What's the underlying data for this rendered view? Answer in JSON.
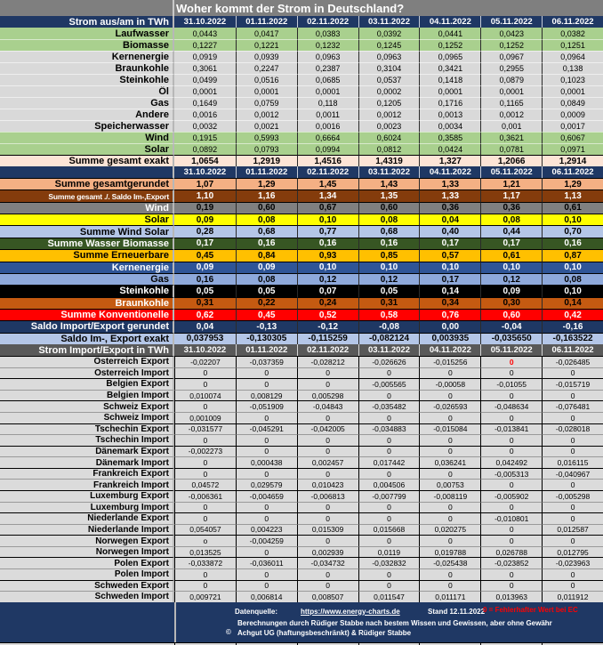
{
  "title": "Woher kommt der Strom in Deutschland?",
  "dates": [
    "31.10.2022",
    "01.11.2022",
    "02.11.2022",
    "03.11.2022",
    "04.11.2022",
    "05.11.2022",
    "06.11.2022"
  ],
  "colors": {
    "header_navy": "#1F3864",
    "header_gray": "#595959",
    "title_gray": "#7F7F7F",
    "renewable_green": "#A9D08E",
    "conventional_gray": "#D9D9D9",
    "sum_peach": "#FCE4D6",
    "rounded_salmon": "#F4B084",
    "saldo_brown": "#843C0C",
    "wind_gray": "#808080",
    "solar_yellow": "#FFFF00",
    "windsolar_blue": "#B4C6E7",
    "waterbio_green": "#375623",
    "renewables_orange": "#FFC000",
    "nuclear_blue": "#2F5597",
    "gas_blue": "#8EA9DB",
    "hardcoal_black": "#000000",
    "lignite_rust": "#C55A11",
    "conventional_red": "#FF0000",
    "error_red": "#FF0000",
    "country_gray": "#DBDBDB"
  },
  "section1": {
    "header_label": "Strom aus/am in TWh",
    "rows": [
      {
        "label": "Laufwasser",
        "style": "green",
        "values": [
          "0,0443",
          "0,0417",
          "0,0383",
          "0,0392",
          "0,0441",
          "0,0423",
          "0,0382"
        ]
      },
      {
        "label": "Biomasse",
        "style": "green",
        "values": [
          "0,1227",
          "0,1221",
          "0,1232",
          "0,1245",
          "0,1252",
          "0,1252",
          "0,1251"
        ]
      },
      {
        "label": "Kernenergie",
        "style": "gray",
        "values": [
          "0,0919",
          "0,0939",
          "0,0963",
          "0,0963",
          "0,0965",
          "0,0967",
          "0,0964"
        ]
      },
      {
        "label": "Braunkohle",
        "style": "gray",
        "values": [
          "0,3061",
          "0,2247",
          "0,2387",
          "0,3104",
          "0,3421",
          "0,2955",
          "0,138"
        ]
      },
      {
        "label": "Steinkohle",
        "style": "gray",
        "values": [
          "0,0499",
          "0,0516",
          "0,0685",
          "0,0537",
          "0,1418",
          "0,0879",
          "0,1023"
        ]
      },
      {
        "label": "Öl",
        "style": "gray",
        "values": [
          "0,0001",
          "0,0001",
          "0,0001",
          "0,0002",
          "0,0001",
          "0,0001",
          "0,0001"
        ]
      },
      {
        "label": "Gas",
        "style": "gray",
        "values": [
          "0,1649",
          "0,0759",
          "0,118",
          "0,1205",
          "0,1716",
          "0,1165",
          "0,0849"
        ]
      },
      {
        "label": "Andere",
        "style": "gray",
        "values": [
          "0,0016",
          "0,0012",
          "0,0011",
          "0,0012",
          "0,0013",
          "0,0012",
          "0,0009"
        ]
      },
      {
        "label": "Speicherwasser",
        "style": "gray",
        "values": [
          "0,0032",
          "0,0021",
          "0,0016",
          "0,0023",
          "0,0034",
          "0,001",
          "0,0017"
        ]
      },
      {
        "label": "Wind",
        "style": "green",
        "values": [
          "0,1915",
          "0,5993",
          "0,6664",
          "0,6024",
          "0,3585",
          "0,3621",
          "0,6067"
        ]
      },
      {
        "label": "Solar",
        "style": "green",
        "values": [
          "0,0892",
          "0,0793",
          "0,0994",
          "0,0812",
          "0,0424",
          "0,0781",
          "0,0971"
        ]
      },
      {
        "label": "Summe  gesamt exakt",
        "style": "peach",
        "values": [
          "1,0654",
          "1,2919",
          "1,4516",
          "1,4319",
          "1,327",
          "1,2066",
          "1,2914"
        ]
      }
    ]
  },
  "section2": {
    "rows": [
      {
        "label": "Summe gesamtgerundet",
        "style": "salmon",
        "values": [
          "1,07",
          "1,29",
          "1,45",
          "1,43",
          "1,33",
          "1,21",
          "1,29"
        ]
      },
      {
        "label": "Summe gesamt ./. Saldo Im-,Export",
        "style": "brown",
        "values": [
          "1,10",
          "1,16",
          "1,34",
          "1,35",
          "1,33",
          "1,17",
          "1,13"
        ]
      },
      {
        "label": "Wind",
        "style": "gray50",
        "values": [
          "0,19",
          "0,60",
          "0,67",
          "0,60",
          "0,36",
          "0,36",
          "0,61"
        ]
      },
      {
        "label": "Solar",
        "style": "yellow",
        "values": [
          "0,09",
          "0,08",
          "0,10",
          "0,08",
          "0,04",
          "0,08",
          "0,10"
        ]
      },
      {
        "label": "Summe Wind Solar",
        "style": "peri",
        "values": [
          "0,28",
          "0,68",
          "0,77",
          "0,68",
          "0,40",
          "0,44",
          "0,70"
        ]
      },
      {
        "label": "Summe Wasser Biomasse",
        "style": "dgreen",
        "values": [
          "0,17",
          "0,16",
          "0,16",
          "0,16",
          "0,17",
          "0,17",
          "0,16"
        ]
      },
      {
        "label": "Summe Erneuerbare",
        "style": "orange",
        "values": [
          "0,45",
          "0,84",
          "0,93",
          "0,85",
          "0,57",
          "0,61",
          "0,87"
        ]
      },
      {
        "label": "Kernenergie",
        "style": "blue",
        "values": [
          "0,09",
          "0,09",
          "0,10",
          "0,10",
          "0,10",
          "0,10",
          "0,10"
        ]
      },
      {
        "label": "Gas",
        "style": "lblue",
        "values": [
          "0,16",
          "0,08",
          "0,12",
          "0,12",
          "0,17",
          "0,12",
          "0,08"
        ]
      },
      {
        "label": "Steinkohle",
        "style": "black",
        "values": [
          "0,05",
          "0,05",
          "0,07",
          "0,05",
          "0,14",
          "0,09",
          "0,10"
        ]
      },
      {
        "label": "Braunkohle",
        "style": "rust",
        "values": [
          "0,31",
          "0,22",
          "0,24",
          "0,31",
          "0,34",
          "0,30",
          "0,14"
        ]
      },
      {
        "label": "Summe Konventionelle",
        "style": "red",
        "values": [
          "0,62",
          "0,45",
          "0,52",
          "0,58",
          "0,76",
          "0,60",
          "0,42"
        ]
      },
      {
        "label": "Saldo Import/Export gerundet",
        "style": "navy",
        "values": [
          "0,04",
          "-0,13",
          "-0,12",
          "-0,08",
          "0,00",
          "-0,04",
          "-0,16"
        ]
      },
      {
        "label": "Saldo Im-, Export exakt",
        "style": "paleblue",
        "values": [
          "0,037953",
          "-0,130305",
          "-0,115259",
          "-0,082124",
          "0,003935",
          "-0,035650",
          "-0,163522"
        ]
      }
    ]
  },
  "section3": {
    "header_label": "Strom Import/Export in TWh",
    "rows": [
      {
        "label": "Österreich Export",
        "values": [
          "-0,02207",
          "-0,037359",
          "-0,028212",
          "-0,026626",
          "-0,015256",
          "0",
          "-0,026485"
        ],
        "red": [
          5
        ]
      },
      {
        "label": "Österreich Import",
        "values": [
          "0",
          "0",
          "0",
          "0",
          "0",
          "0",
          "0"
        ]
      },
      {
        "label": "Belgien  Export",
        "values": [
          "0",
          "0",
          "0",
          "-0,005565",
          "-0,00058",
          "-0,01055",
          "-0,015719"
        ]
      },
      {
        "label": "Belgien Import",
        "values": [
          "0,010074",
          "0,008129",
          "0,005298",
          "0",
          "0",
          "0",
          "0"
        ]
      },
      {
        "label": "Schweiz Export",
        "values": [
          "0",
          "-0,051909",
          "-0,04843",
          "-0,035482",
          "-0,026593",
          "-0,048634",
          "-0,076481"
        ]
      },
      {
        "label": "Schweiz Import",
        "values": [
          "0,001009",
          "0",
          "0",
          "0",
          "0",
          "0",
          "0"
        ]
      },
      {
        "label": "Tschechin Export",
        "values": [
          "-0,031577",
          "-0,045291",
          "-0,042005",
          "-0,034883",
          "-0,015084",
          "-0,013841",
          "-0,028018"
        ]
      },
      {
        "label": "Tschechin Import",
        "values": [
          "0",
          "0",
          "0",
          "0",
          "0",
          "0",
          "0"
        ]
      },
      {
        "label": "Dänemark Export",
        "values": [
          "-0,002273",
          "0",
          "0",
          "0",
          "0",
          "0",
          "0"
        ]
      },
      {
        "label": "Dänemark Import",
        "values": [
          "0",
          "0,000438",
          "0,002457",
          "0,017442",
          "0,036241",
          "0,042492",
          "0,016115"
        ]
      },
      {
        "label": "Frankreich Export",
        "values": [
          "0",
          "0",
          "0",
          "0",
          "0",
          "-0,005313",
          "-0,040967"
        ]
      },
      {
        "label": "Frankreich Import",
        "values": [
          "0,04572",
          "0,029579",
          "0,010423",
          "0,004506",
          "0,00753",
          "0",
          "0"
        ]
      },
      {
        "label": "Luxemburg Export",
        "values": [
          "-0,006361",
          "-0,004659",
          "-0,006813",
          "-0,007799",
          "-0,008119",
          "-0,005902",
          "-0,005298"
        ]
      },
      {
        "label": "Luxemburg Import",
        "values": [
          "0",
          "0",
          "0",
          "0",
          "0",
          "0",
          "0"
        ]
      },
      {
        "label": "Niederlande Export",
        "values": [
          "0",
          "0",
          "0",
          "0",
          "0",
          "-0,010801",
          "0"
        ]
      },
      {
        "label": "Niederlande Import",
        "values": [
          "0,054057",
          "0,004223",
          "0,015309",
          "0,015668",
          "0,020275",
          "0",
          "0,012587"
        ]
      },
      {
        "label": "Norwegen Export",
        "values": [
          "o",
          "-0,004259",
          "0",
          "0",
          "0",
          "0",
          "0"
        ]
      },
      {
        "label": "Norwegen Import",
        "values": [
          "0,013525",
          "0",
          "0,002939",
          "0,0119",
          "0,019788",
          "0,026788",
          "0,012795"
        ]
      },
      {
        "label": "Polen  Export",
        "values": [
          "-0,033872",
          "-0,036011",
          "-0,034732",
          "-0,032832",
          "-0,025438",
          "-0,023852",
          "-0,023963"
        ]
      },
      {
        "label": "Polen Import",
        "values": [
          "0",
          "0",
          "0",
          "0",
          "0",
          "0",
          "0"
        ]
      },
      {
        "label": "Schweden Export",
        "values": [
          "0",
          "0",
          "0",
          "0",
          "0",
          "0",
          "0"
        ]
      },
      {
        "label": "Schweden Import",
        "values": [
          "0,009721",
          "0,006814",
          "0,008507",
          "0,011547",
          "0,011171",
          "0,013963",
          "0,011912"
        ]
      }
    ]
  },
  "footer": {
    "source_label": "Datenquelle:",
    "source_link": "https://www.energy-charts.de",
    "stand": "Stand 12.11.2022",
    "error_note": "0 = Fehlerhafter Wert bei EC",
    "disclaimer": "Berechnungen durch Rüdiger Stabbe nach bestem Wissen und Gewissen, aber ohne Gewähr",
    "copyright_symbol": "©",
    "copyright": "Achgut UG (haftungsbeschränkt) & Rüdiger Stabbe"
  }
}
